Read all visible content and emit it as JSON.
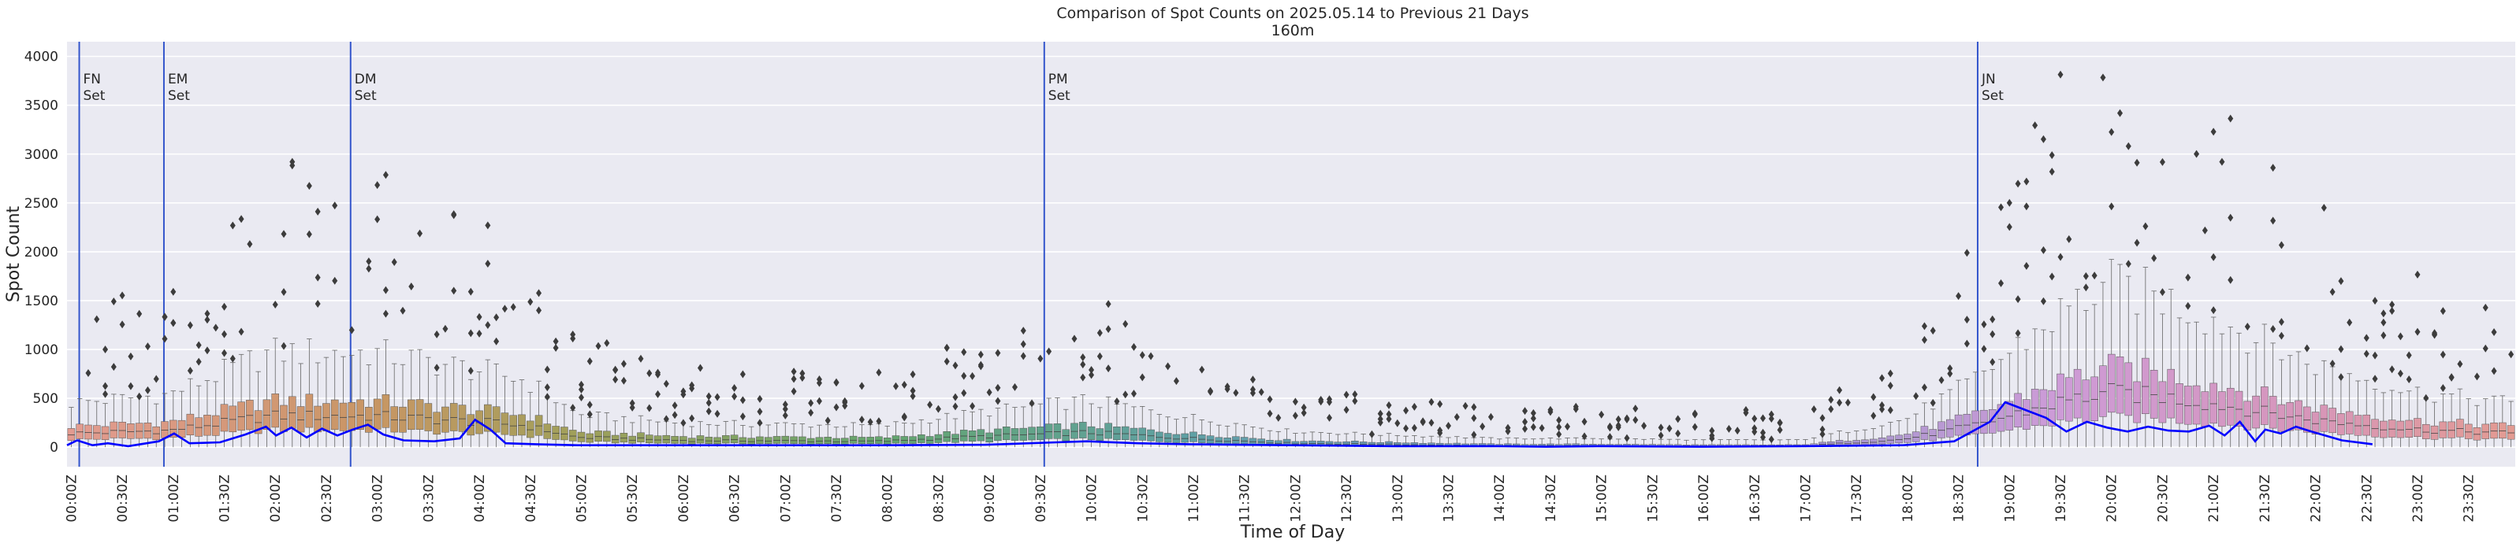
{
  "chart_data": {
    "type": "box",
    "title": "Comparison of Spot Counts on 2025.05.14 to Previous 21 Days",
    "subtitle": "160m",
    "xlabel": "Time of Day",
    "ylabel": "Spot Count",
    "ylim": [
      -200,
      4150
    ],
    "yticks": [
      0,
      500,
      1000,
      1500,
      2000,
      2500,
      3000,
      3500,
      4000
    ],
    "bins_per_day": 288,
    "xtick_labels": [
      "00:00Z",
      "00:30Z",
      "01:00Z",
      "01:30Z",
      "02:00Z",
      "02:30Z",
      "03:00Z",
      "03:30Z",
      "04:00Z",
      "04:30Z",
      "05:00Z",
      "05:30Z",
      "06:00Z",
      "06:30Z",
      "07:00Z",
      "07:30Z",
      "08:00Z",
      "08:30Z",
      "09:00Z",
      "09:30Z",
      "10:00Z",
      "10:30Z",
      "11:00Z",
      "11:30Z",
      "12:00Z",
      "12:30Z",
      "13:00Z",
      "13:30Z",
      "14:00Z",
      "14:30Z",
      "15:00Z",
      "15:30Z",
      "16:00Z",
      "16:30Z",
      "17:00Z",
      "17:30Z",
      "18:00Z",
      "18:30Z",
      "19:00Z",
      "19:30Z",
      "20:00Z",
      "20:30Z",
      "21:00Z",
      "21:30Z",
      "22:00Z",
      "22:30Z",
      "23:00Z",
      "23:30Z"
    ],
    "events": [
      {
        "hour": 0.12,
        "label1": "FN",
        "label2": "Set"
      },
      {
        "hour": 0.95,
        "label1": "EM",
        "label2": "Set"
      },
      {
        "hour": 2.78,
        "label1": "DM",
        "label2": "Set"
      },
      {
        "hour": 9.58,
        "label1": "PM",
        "label2": "Set"
      },
      {
        "hour": 18.73,
        "label1": "JN",
        "label2": "Set"
      }
    ],
    "median_profile": [
      [
        0,
        140
      ],
      [
        1,
        170
      ],
      [
        2,
        320
      ],
      [
        3,
        320
      ],
      [
        4,
        260
      ],
      [
        4.5,
        220
      ],
      [
        5,
        100
      ],
      [
        6,
        70
      ],
      [
        8,
        60
      ],
      [
        9,
        110
      ],
      [
        10,
        150
      ],
      [
        11,
        90
      ],
      [
        12,
        40
      ],
      [
        14,
        15
      ],
      [
        15,
        15
      ],
      [
        16,
        10
      ],
      [
        17,
        10
      ],
      [
        18,
        80
      ],
      [
        18.7,
        220
      ],
      [
        19.5,
        450
      ],
      [
        20,
        560
      ],
      [
        20.5,
        520
      ],
      [
        21,
        450
      ],
      [
        22,
        280
      ],
      [
        23,
        180
      ],
      [
        24,
        140
      ]
    ],
    "current_day": [
      [
        0,
        20
      ],
      [
        0.1,
        70
      ],
      [
        0.25,
        20
      ],
      [
        0.4,
        40
      ],
      [
        0.6,
        10
      ],
      [
        0.9,
        60
      ],
      [
        1.05,
        140
      ],
      [
        1.2,
        40
      ],
      [
        1.5,
        50
      ],
      [
        1.75,
        130
      ],
      [
        1.95,
        210
      ],
      [
        2.05,
        120
      ],
      [
        2.2,
        200
      ],
      [
        2.35,
        100
      ],
      [
        2.5,
        190
      ],
      [
        2.65,
        120
      ],
      [
        2.8,
        180
      ],
      [
        2.95,
        230
      ],
      [
        3.1,
        130
      ],
      [
        3.3,
        70
      ],
      [
        3.6,
        60
      ],
      [
        3.85,
        90
      ],
      [
        4.0,
        280
      ],
      [
        4.15,
        180
      ],
      [
        4.3,
        40
      ],
      [
        4.6,
        30
      ],
      [
        5,
        20
      ],
      [
        6,
        20
      ],
      [
        7,
        20
      ],
      [
        8,
        20
      ],
      [
        9,
        25
      ],
      [
        9.7,
        50
      ],
      [
        10,
        60
      ],
      [
        10.5,
        40
      ],
      [
        11,
        30
      ],
      [
        12,
        20
      ],
      [
        13,
        10
      ],
      [
        14,
        10
      ],
      [
        14.5,
        5
      ],
      [
        15,
        10
      ],
      [
        16,
        5
      ],
      [
        17,
        10
      ],
      [
        18,
        20
      ],
      [
        18.5,
        60
      ],
      [
        18.85,
        260
      ],
      [
        19.0,
        460
      ],
      [
        19.2,
        380
      ],
      [
        19.4,
        300
      ],
      [
        19.6,
        160
      ],
      [
        19.8,
        260
      ],
      [
        20,
        200
      ],
      [
        20.2,
        160
      ],
      [
        20.4,
        210
      ],
      [
        20.6,
        170
      ],
      [
        20.8,
        160
      ],
      [
        21,
        220
      ],
      [
        21.15,
        120
      ],
      [
        21.3,
        260
      ],
      [
        21.45,
        60
      ],
      [
        21.55,
        180
      ],
      [
        21.7,
        140
      ],
      [
        21.85,
        210
      ],
      [
        22,
        160
      ],
      [
        22.3,
        70
      ],
      [
        22.6,
        30
      ]
    ]
  }
}
